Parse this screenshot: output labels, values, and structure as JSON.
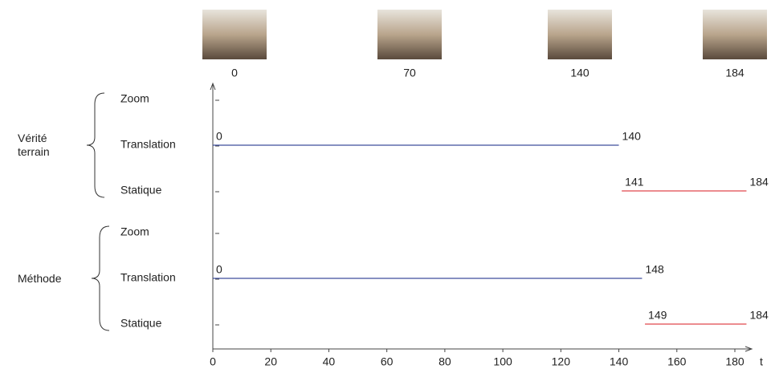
{
  "chart_data": {
    "type": "timeline",
    "x_label": "t",
    "xlim": [
      0,
      180
    ],
    "xticks": [
      0,
      20,
      40,
      60,
      80,
      100,
      120,
      140,
      160,
      180
    ],
    "frames": [
      0,
      70,
      140,
      184
    ],
    "groups": [
      {
        "name": "Vérité terrain",
        "rows": [
          {
            "name": "Zoom",
            "segments": []
          },
          {
            "name": "Translation",
            "segments": [
              {
                "start": 0,
                "end": 140,
                "color": "#3d4e9c"
              }
            ]
          },
          {
            "name": "Statique",
            "segments": [
              {
                "start": 141,
                "end": 184,
                "color": "#e0474c"
              }
            ]
          }
        ]
      },
      {
        "name": "Méthode",
        "rows": [
          {
            "name": "Zoom",
            "segments": []
          },
          {
            "name": "Translation",
            "segments": [
              {
                "start": 0,
                "end": 148,
                "color": "#3d4e9c"
              }
            ]
          },
          {
            "name": "Statique",
            "segments": [
              {
                "start": 149,
                "end": 184,
                "color": "#e0474c"
              }
            ]
          }
        ]
      }
    ]
  }
}
